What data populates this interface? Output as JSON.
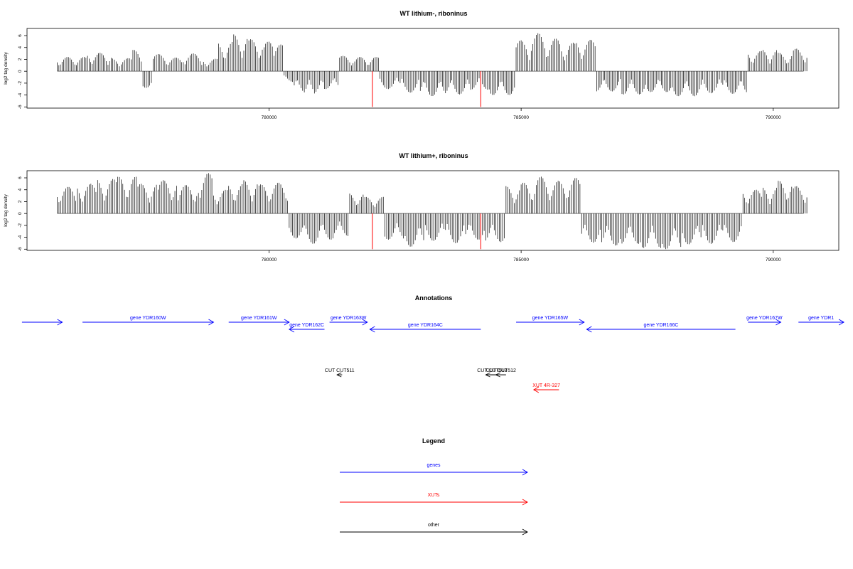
{
  "chart_data": [
    {
      "type": "bar",
      "title": "WT lithium-, riboninus",
      "ylabel": "log2 tag density",
      "xlabel": "",
      "xlim": [
        775200,
        791300
      ],
      "ylim": [
        -6.2,
        7.2
      ],
      "yticks": [
        -6,
        -4,
        -2,
        0,
        2,
        4,
        6
      ],
      "xticks": [
        780000,
        785000,
        790000
      ],
      "grid": false,
      "series": [
        {
          "color": "#000000",
          "x": [
            775800,
            776400,
            776900,
            777300,
            777500,
            777700,
            778000,
            778300,
            778700,
            779000,
            779300,
            779600,
            779900,
            780100,
            780300,
            780500,
            780700,
            780900,
            781100,
            781400,
            781700,
            782200,
            782600,
            783000,
            783500,
            784000,
            784400,
            784900,
            785200,
            785500,
            785800,
            786100,
            786500,
            787000,
            787500,
            788000,
            788600,
            789000,
            789500,
            789800,
            790100,
            790400
          ],
          "values": [
            2.4,
            3.1,
            2.2,
            3.6,
            -2.8,
            2.9,
            2.3,
            3.0,
            2.1,
            5.0,
            6.2,
            5.4,
            5.0,
            4.5,
            -1.8,
            -3.6,
            -4.1,
            -3.8,
            -3.0,
            2.6,
            2.4,
            -3.0,
            -3.6,
            -4.2,
            -3.9,
            -3.1,
            -4.0,
            5.2,
            6.4,
            5.5,
            4.8,
            5.3,
            -3.4,
            -3.9,
            -3.5,
            -4.2,
            -3.7,
            -3.8,
            3.4,
            3.7,
            3.1,
            3.8
          ]
        },
        {
          "color": "#ff0000",
          "x": [
            782050,
            784200
          ],
          "values": [
            -6.0,
            -6.0
          ]
        }
      ]
    },
    {
      "type": "bar",
      "title": "WT lithium+, riboninus",
      "ylabel": "log2 tag density",
      "xlabel": "",
      "xlim": [
        775200,
        791300
      ],
      "ylim": [
        -6.2,
        7.2
      ],
      "yticks": [
        -6,
        -4,
        -2,
        0,
        2,
        4,
        6
      ],
      "xticks": [
        780000,
        785000,
        790000
      ],
      "grid": false,
      "series": [
        {
          "color": "#000000",
          "x": [
            775800,
            776200,
            776600,
            777000,
            777400,
            777800,
            778200,
            778600,
            778900,
            779200,
            779500,
            779800,
            780100,
            780400,
            780700,
            781000,
            781300,
            781600,
            781900,
            782300,
            782700,
            783100,
            783500,
            783900,
            784300,
            784700,
            785000,
            785300,
            785600,
            785900,
            786200,
            786600,
            787000,
            787400,
            787800,
            788200,
            788600,
            789000,
            789400,
            789800,
            790100,
            790400
          ],
          "values": [
            4.5,
            5.0,
            5.8,
            6.2,
            5.0,
            5.6,
            4.8,
            6.8,
            4.0,
            5.0,
            5.6,
            4.9,
            5.2,
            -4.2,
            -5.1,
            -4.4,
            -3.8,
            3.4,
            2.8,
            -4.4,
            -5.6,
            -4.6,
            -5.0,
            -4.4,
            -4.8,
            4.6,
            5.2,
            6.2,
            5.5,
            6.0,
            -4.9,
            -5.4,
            -5.1,
            -5.8,
            -6.0,
            -5.2,
            -5.1,
            -4.8,
            4.0,
            4.5,
            5.5,
            4.6
          ]
        },
        {
          "color": "#ff0000",
          "x": [
            782050,
            784200
          ],
          "values": [
            -6.0,
            -6.0
          ]
        }
      ]
    }
  ],
  "annotations": {
    "title": "Annotations",
    "genes": [
      {
        "label": "",
        "start": 775100,
        "end": 775900,
        "strand": "+"
      },
      {
        "label": "gene YDR160W",
        "start": 776300,
        "end": 778900,
        "strand": "+"
      },
      {
        "label": "gene YDR161W",
        "start": 779200,
        "end": 780400,
        "strand": "+"
      },
      {
        "label": "gene YDR162C",
        "start": 780400,
        "end": 781100,
        "strand": "-"
      },
      {
        "label": "gene YDR163W",
        "start": 781200,
        "end": 781950,
        "strand": "+"
      },
      {
        "label": "gene YDR164C",
        "start": 782000,
        "end": 784200,
        "strand": "-"
      },
      {
        "label": "gene YDR165W",
        "start": 784900,
        "end": 786250,
        "strand": "+"
      },
      {
        "label": "gene YDR166C",
        "start": 786300,
        "end": 789250,
        "strand": "-"
      },
      {
        "label": "gene YDR167W",
        "start": 789500,
        "end": 790150,
        "strand": "+"
      },
      {
        "label": "gene YDR1",
        "start": 790500,
        "end": 791400,
        "strand": "+"
      }
    ],
    "cuts": [
      {
        "label": "CUT CUT511",
        "start": 781350,
        "end": 781450,
        "strand": "-"
      },
      {
        "label": "CUT CUT513",
        "start": 784300,
        "end": 784550,
        "strand": "-"
      },
      {
        "label": "CUT CUT512",
        "start": 784500,
        "end": 784700,
        "strand": "-"
      }
    ],
    "xuts": [
      {
        "label": "XUT 4R-327",
        "start": 785250,
        "end": 785750,
        "strand": "-"
      }
    ]
  },
  "legend": {
    "title": "Legend",
    "items": [
      {
        "label": "genes",
        "color": "#0000ff"
      },
      {
        "label": "XUTs",
        "color": "#ff0000"
      },
      {
        "label": "other",
        "color": "#000000"
      }
    ]
  },
  "colors": {
    "gene": "#0000ff",
    "xut": "#ff0000",
    "other": "#000000",
    "axis": "#000000",
    "baseline": "#808080"
  }
}
